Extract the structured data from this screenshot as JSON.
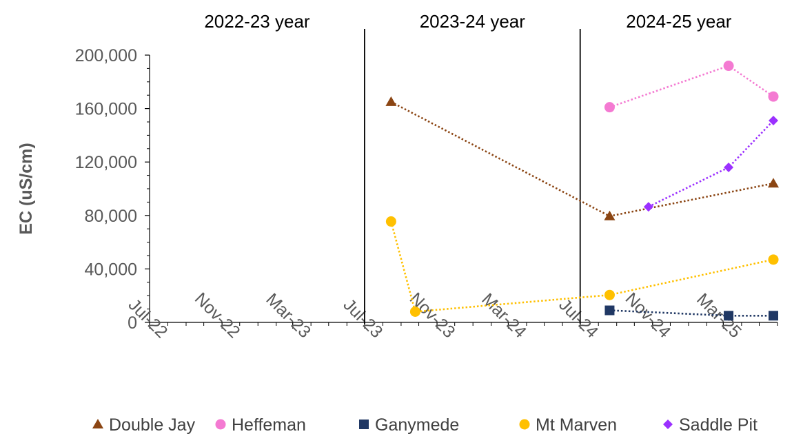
{
  "chart_data": {
    "type": "line",
    "title": "",
    "xlabel": "",
    "ylabel": "EC (uS/cm)",
    "ylim": [
      0,
      200000
    ],
    "y_ticks": [
      "0",
      "40,000",
      "80,000",
      "120,000",
      "160,000",
      "200,000"
    ],
    "y_tick_values": [
      0,
      40000,
      80000,
      120000,
      160000,
      200000
    ],
    "x_range": [
      "2022-07-01",
      "2025-06-01"
    ],
    "x_tick_labels": [
      "Jul-22",
      "Nov-22",
      "Mar-23",
      "Jul-23",
      "Nov-23",
      "Mar-24",
      "Jul-24",
      "Nov-24",
      "Mar-25"
    ],
    "x_tick_dates": [
      "2022-07-01",
      "2022-11-01",
      "2023-03-01",
      "2023-07-01",
      "2023-11-01",
      "2024-03-01",
      "2024-07-01",
      "2024-11-01",
      "2025-03-01"
    ],
    "grid": false,
    "legend_position": "bottom",
    "periods": [
      {
        "label": "2022-23 year",
        "start": "2022-07-01",
        "end": "2023-07-01"
      },
      {
        "label": "2023-24 year",
        "start": "2023-07-01",
        "end": "2024-07-01"
      },
      {
        "label": "2024-25 year",
        "start": "2024-07-01",
        "end": "2025-06-01"
      }
    ],
    "period_dividers": [
      "2023-07-01",
      "2024-07-01"
    ],
    "series": [
      {
        "name": "Double Jay",
        "color": "#8B4513",
        "marker": "triangle",
        "points": [
          {
            "x": "2023-08-15",
            "y": 165000
          },
          {
            "x": "2024-08-20",
            "y": 79500
          },
          {
            "x": "2025-05-25",
            "y": 104000
          }
        ]
      },
      {
        "name": "Heffeman",
        "color": "#F47AD2",
        "marker": "circle",
        "points": [
          {
            "x": "2024-08-20",
            "y": 161000
          },
          {
            "x": "2025-03-10",
            "y": 192000
          },
          {
            "x": "2025-05-25",
            "y": 169000
          }
        ]
      },
      {
        "name": "Ganymede",
        "color": "#203864",
        "marker": "square",
        "points": [
          {
            "x": "2024-08-20",
            "y": 9000
          },
          {
            "x": "2025-03-10",
            "y": 5000
          },
          {
            "x": "2025-05-25",
            "y": 5000
          }
        ]
      },
      {
        "name": "Mt Marven",
        "color": "#FFC000",
        "marker": "circle",
        "points": [
          {
            "x": "2023-08-15",
            "y": 75500
          },
          {
            "x": "2023-09-25",
            "y": 8000
          },
          {
            "x": "2024-08-20",
            "y": 20500
          },
          {
            "x": "2025-05-25",
            "y": 47000
          }
        ]
      },
      {
        "name": "Saddle Pit",
        "color": "#9B30FF",
        "marker": "diamond",
        "points": [
          {
            "x": "2024-10-25",
            "y": 86500
          },
          {
            "x": "2025-03-10",
            "y": 116000
          },
          {
            "x": "2025-05-25",
            "y": 151000
          }
        ]
      }
    ]
  }
}
